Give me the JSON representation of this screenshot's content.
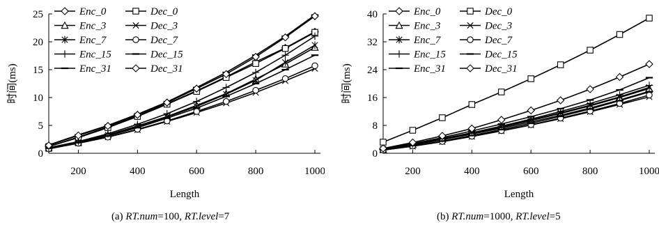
{
  "chart_data": [
    {
      "type": "line",
      "caption": {
        "prefix": "(a) ",
        "num_key": "RT.num",
        "num_val": "=100, ",
        "level_key": "RT.level",
        "level_val": "=7"
      },
      "xlabel": "Length",
      "ylabel": "时间(ms)",
      "xlim": [
        100,
        1000
      ],
      "ylim": [
        0,
        25
      ],
      "xticks": [
        200,
        400,
        600,
        800,
        1000
      ],
      "yticks": [
        0,
        5,
        10,
        15,
        20,
        25
      ],
      "grid": false,
      "legend_placement": "top-left",
      "x": [
        100,
        200,
        300,
        400,
        500,
        600,
        700,
        800,
        900,
        1000
      ],
      "series": [
        {
          "name": "Enc_0",
          "marker": "diamond",
          "values": [
            1.2,
            2.9,
            4.7,
            6.7,
            8.9,
            11.2,
            13.7,
            16.4,
            18.9,
            21.8
          ]
        },
        {
          "name": "Dec_0",
          "marker": "square",
          "values": [
            1.2,
            2.8,
            4.6,
            6.6,
            8.8,
            11.1,
            13.6,
            16.1,
            18.8,
            21.7
          ]
        },
        {
          "name": "Enc_3",
          "marker": "triangle",
          "values": [
            1.0,
            2.0,
            3.3,
            4.9,
            6.6,
            8.6,
            10.7,
            13.3,
            16.0,
            19.0
          ]
        },
        {
          "name": "Dec_3",
          "marker": "x",
          "values": [
            0.8,
            1.8,
            2.9,
            4.2,
            5.7,
            7.3,
            9.0,
            10.9,
            13.0,
            15.2
          ]
        },
        {
          "name": "Enc_7",
          "marker": "asterisk",
          "values": [
            1.0,
            2.0,
            3.3,
            4.8,
            6.5,
            8.4,
            10.6,
            13.1,
            16.3,
            19.4
          ]
        },
        {
          "name": "Dec_7",
          "marker": "circle",
          "values": [
            0.8,
            1.8,
            2.9,
            4.3,
            5.8,
            7.5,
            9.3,
            11.3,
            13.4,
            15.7
          ]
        },
        {
          "name": "Enc_15",
          "marker": "plus",
          "values": [
            1.0,
            2.1,
            3.5,
            5.2,
            7.1,
            9.3,
            11.8,
            14.5,
            17.6,
            21.0
          ]
        },
        {
          "name": "Dec_15",
          "marker": "dash",
          "values": [
            0.9,
            1.9,
            3.1,
            4.6,
            6.3,
            8.1,
            10.2,
            12.5,
            15.0,
            17.6
          ]
        },
        {
          "name": "Enc_31",
          "marker": "dash",
          "values": [
            1.5,
            3.3,
            5.0,
            7.0,
            9.2,
            11.8,
            14.5,
            17.6,
            21.0,
            24.8
          ]
        },
        {
          "name": "Dec_31",
          "marker": "diamond",
          "values": [
            1.4,
            3.2,
            4.9,
            6.9,
            9.1,
            11.6,
            14.2,
            17.3,
            20.8,
            24.6
          ]
        }
      ]
    },
    {
      "type": "line",
      "caption": {
        "prefix": "(b) ",
        "num_key": "RT.num",
        "num_val": "=1000, ",
        "level_key": "RT.level",
        "level_val": "=5"
      },
      "xlabel": "Length",
      "ylabel": "时间(ms)",
      "xlim": [
        100,
        1000
      ],
      "ylim": [
        0,
        40
      ],
      "xticks": [
        200,
        400,
        600,
        800,
        1000
      ],
      "yticks": [
        0,
        8,
        16,
        24,
        32,
        40
      ],
      "grid": false,
      "legend_placement": "top-left",
      "x": [
        100,
        200,
        300,
        400,
        500,
        600,
        700,
        800,
        900,
        1000
      ],
      "series": [
        {
          "name": "Enc_0",
          "marker": "diamond",
          "values": [
            1.1,
            2.4,
            3.9,
            5.5,
            7.2,
            9.0,
            10.9,
            13.0,
            15.3,
            17.8
          ]
        },
        {
          "name": "Dec_0",
          "marker": "square",
          "values": [
            3.2,
            6.6,
            10.2,
            14.0,
            17.6,
            21.4,
            25.4,
            29.6,
            34.1,
            38.8
          ]
        },
        {
          "name": "Enc_3",
          "marker": "triangle",
          "values": [
            1.1,
            2.5,
            4.0,
            5.7,
            7.5,
            9.4,
            11.4,
            13.6,
            16.0,
            18.6
          ]
        },
        {
          "name": "Dec_3",
          "marker": "x",
          "values": [
            0.9,
            2.0,
            3.3,
            4.8,
            6.4,
            8.1,
            9.9,
            11.9,
            14.0,
            16.2
          ]
        },
        {
          "name": "Enc_7",
          "marker": "asterisk",
          "values": [
            1.2,
            2.5,
            4.1,
            5.8,
            7.6,
            9.5,
            11.6,
            13.8,
            16.2,
            18.9
          ]
        },
        {
          "name": "Dec_7",
          "marker": "circle",
          "values": [
            0.9,
            2.1,
            3.4,
            4.9,
            6.5,
            8.2,
            10.1,
            12.1,
            14.3,
            16.7
          ]
        },
        {
          "name": "Enc_15",
          "marker": "plus",
          "values": [
            1.2,
            2.6,
            4.2,
            5.9,
            7.8,
            9.8,
            12.0,
            14.3,
            16.8,
            19.5
          ]
        },
        {
          "name": "Dec_15",
          "marker": "dash",
          "values": [
            1.0,
            2.2,
            3.5,
            5.1,
            6.8,
            8.6,
            10.6,
            12.7,
            15.1,
            17.6
          ]
        },
        {
          "name": "Enc_31",
          "marker": "dash",
          "values": [
            1.3,
            2.8,
            4.5,
            6.4,
            8.4,
            10.5,
            12.8,
            15.3,
            18.2,
            21.7
          ]
        },
        {
          "name": "Dec_31",
          "marker": "diamond",
          "values": [
            1.4,
            3.1,
            5.0,
            7.1,
            9.6,
            12.3,
            15.2,
            18.4,
            21.9,
            25.6
          ]
        }
      ]
    }
  ]
}
